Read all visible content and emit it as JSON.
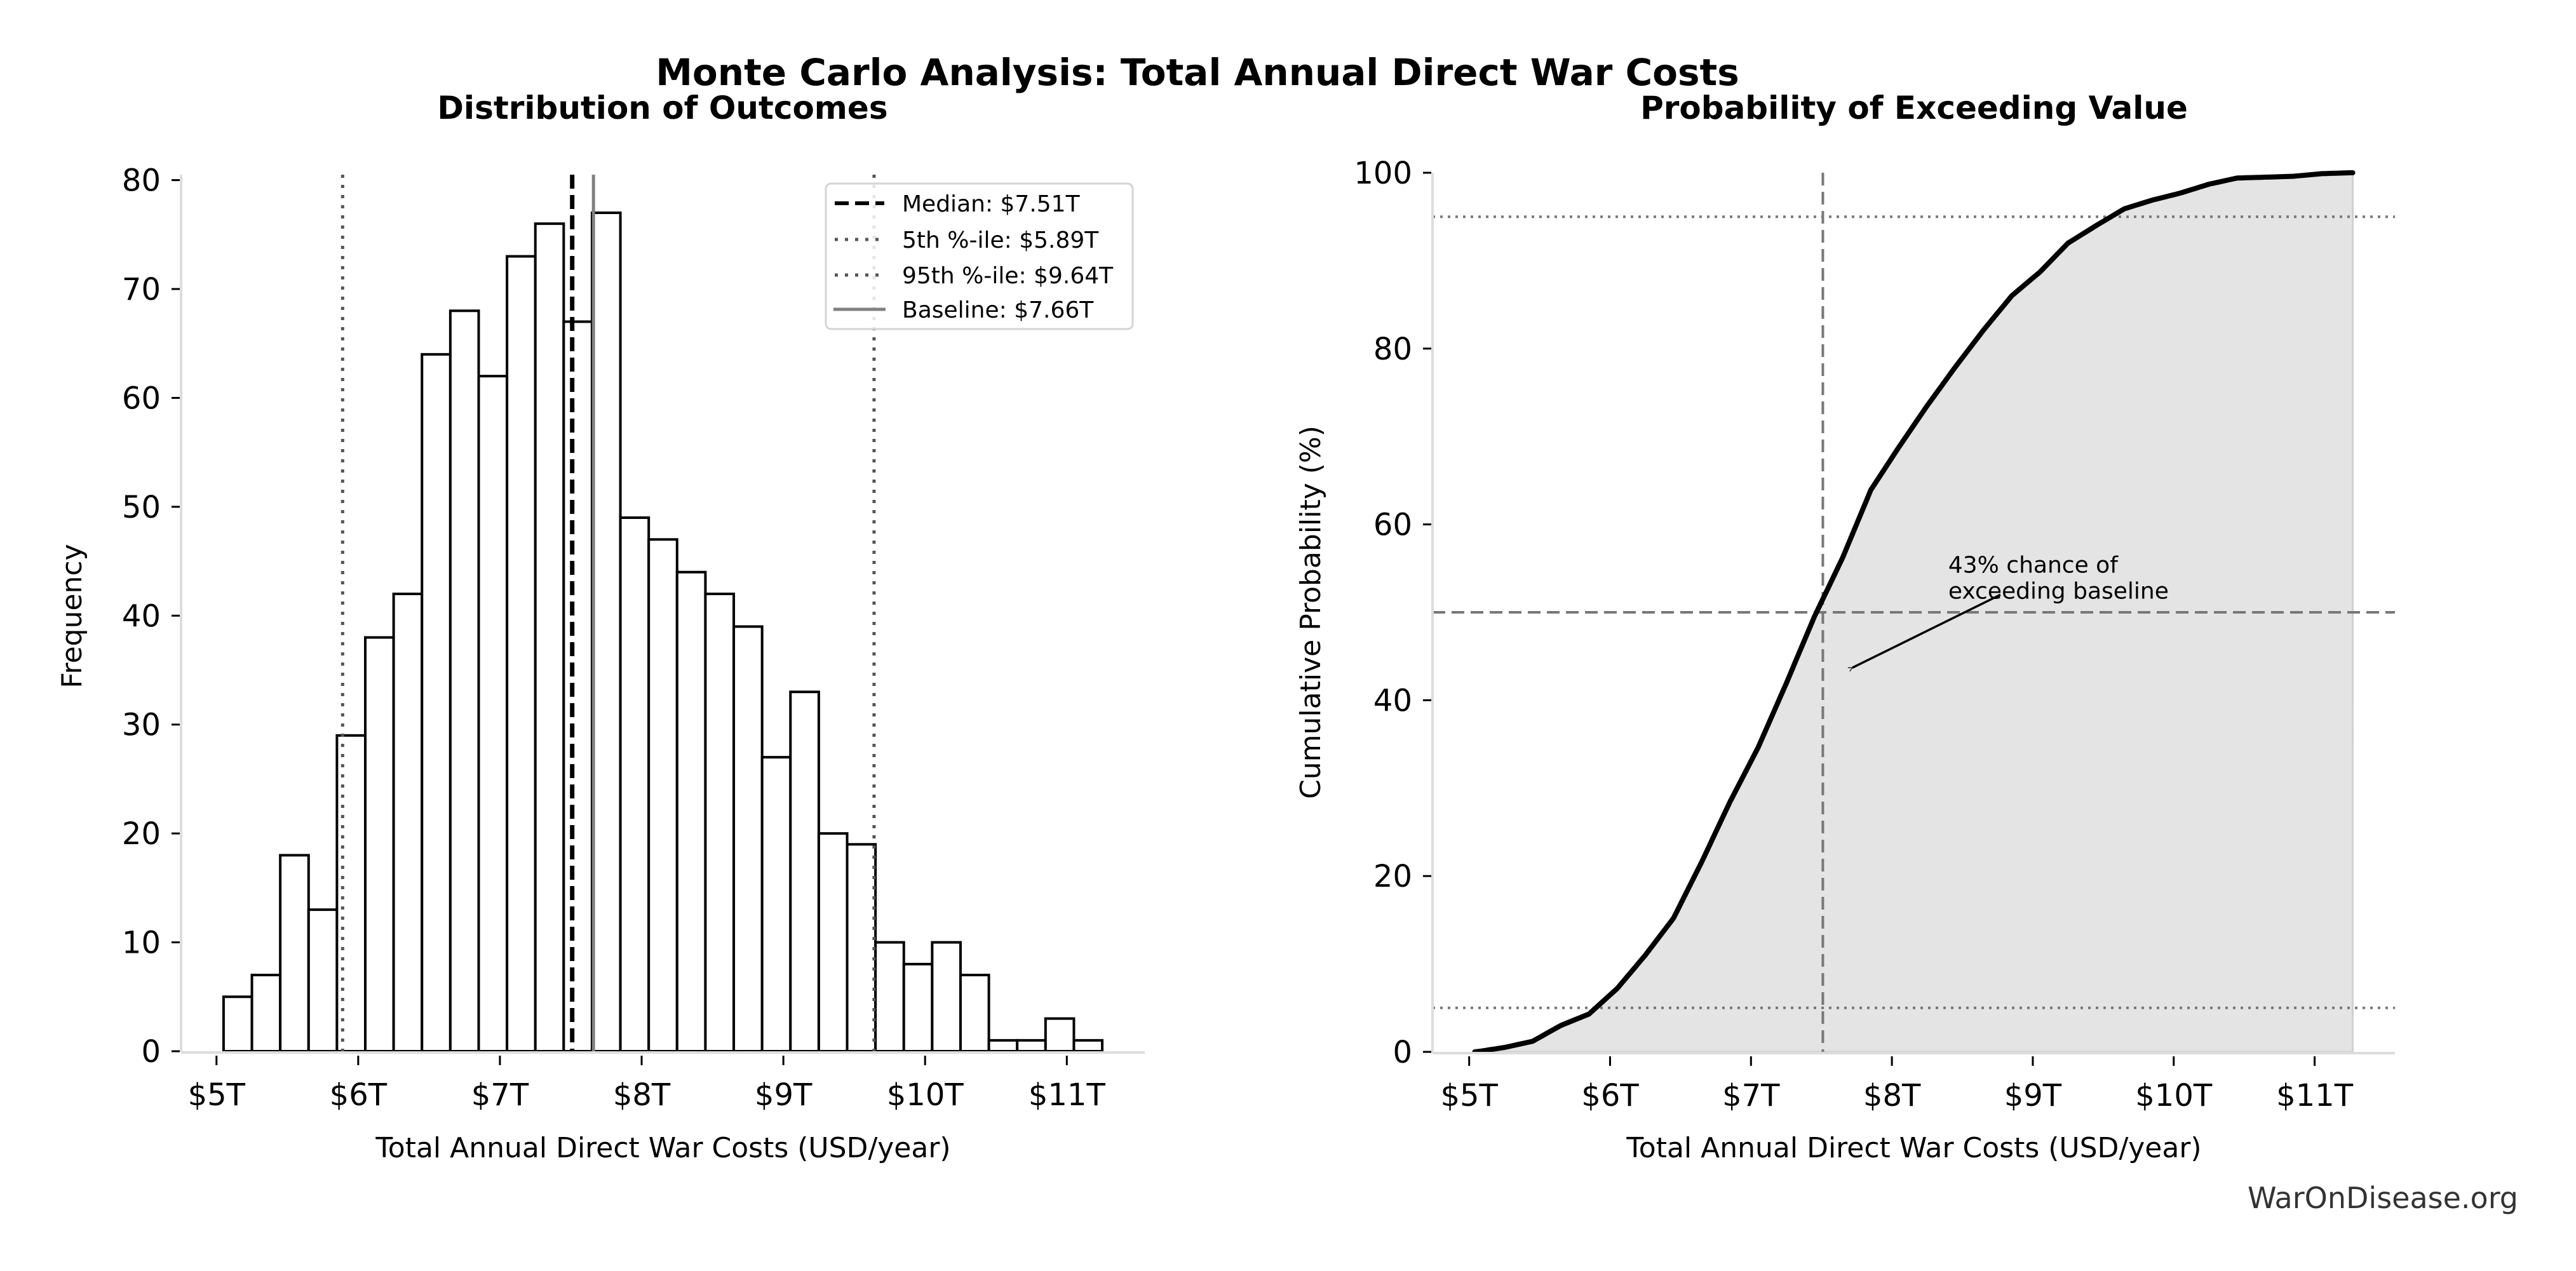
{
  "figure": {
    "title": "Monte Carlo Analysis: Total Annual Direct War Costs",
    "watermark": "WarOnDisease.org"
  },
  "colors": {
    "bar_edge": "#000000",
    "bar_fill": "#ffffff",
    "median_line": "#000000",
    "percentile_line": "#555555",
    "baseline_line": "#808080",
    "cdf_line": "#000000",
    "cdf_fill": "#e4e4e4",
    "ref_line": "#777777",
    "spine": "#dddddd"
  },
  "chart_data": [
    {
      "type": "bar",
      "subtype": "histogram",
      "title": "Distribution of Outcomes",
      "xlabel": "Total Annual Direct War Costs (USD/year)",
      "ylabel": "Frequency",
      "xlim": [
        4.75,
        11.55
      ],
      "ylim": [
        0,
        80.5
      ],
      "xticks": [
        5,
        6,
        7,
        8,
        9,
        10,
        11
      ],
      "xtick_labels": [
        "$5T",
        "$6T",
        "$7T",
        "$8T",
        "$9T",
        "$10T",
        "$11T"
      ],
      "yticks": [
        0,
        10,
        20,
        30,
        40,
        50,
        60,
        70,
        80
      ],
      "ytick_labels": [
        "0",
        "10",
        "20",
        "30",
        "40",
        "50",
        "60",
        "70",
        "80"
      ],
      "bin_start": 5.05,
      "bin_width": 0.2,
      "counts": [
        5,
        7,
        18,
        13,
        29,
        38,
        42,
        64,
        68,
        62,
        73,
        76,
        67,
        77,
        49,
        47,
        44,
        42,
        39,
        27,
        33,
        20,
        19,
        10,
        8,
        10,
        7,
        1,
        1,
        3,
        1
      ],
      "grid": false,
      "vlines": [
        {
          "name": "median",
          "x": 7.51,
          "style": "dashed"
        },
        {
          "name": "p5",
          "x": 5.89,
          "style": "dotted"
        },
        {
          "name": "p95",
          "x": 9.64,
          "style": "dotted"
        },
        {
          "name": "baseline",
          "x": 7.66,
          "style": "solid"
        }
      ],
      "legend": {
        "placement": "upper-right",
        "entries": [
          {
            "label": "Median: $7.51T",
            "style": "dashed"
          },
          {
            "label": "5th %-ile: $5.89T",
            "style": "dotted"
          },
          {
            "label": "95th %-ile: $9.64T",
            "style": "dotted"
          },
          {
            "label": "Baseline: $7.66T",
            "style": "solid"
          }
        ]
      }
    },
    {
      "type": "area",
      "subtype": "cumulative-distribution",
      "title": "Probability of Exceeding Value",
      "xlabel": "Total Annual Direct War Costs (USD/year)",
      "ylabel": "Cumulative Probability (%)",
      "xlim": [
        4.74,
        11.57
      ],
      "ylim": [
        0,
        100
      ],
      "xticks": [
        5,
        6,
        7,
        8,
        9,
        10,
        11
      ],
      "xtick_labels": [
        "$5T",
        "$6T",
        "$7T",
        "$8T",
        "$9T",
        "$10T",
        "$11T"
      ],
      "yticks": [
        0,
        20,
        40,
        60,
        80,
        100
      ],
      "ytick_labels": [
        "0",
        "20",
        "40",
        "60",
        "80",
        "100"
      ],
      "x_range": [
        5.04,
        11.27
      ],
      "derived_from": "histogram counts (cumulative)",
      "grid": false,
      "hlines": [
        {
          "name": "p5",
          "y": 5,
          "style": "dotted"
        },
        {
          "name": "p50",
          "y": 50,
          "style": "dashed"
        },
        {
          "name": "p95",
          "y": 95,
          "style": "dotted"
        }
      ],
      "vlines": [
        {
          "name": "median",
          "x": 7.51,
          "style": "dashed"
        }
      ],
      "annotation": {
        "lines": [
          "43% chance of",
          "exceeding baseline"
        ],
        "text_at": [
          8.4,
          54.5
        ],
        "arrow_from": [
          8.77,
          52
        ],
        "arrow_to": [
          7.72,
          43.7
        ]
      }
    }
  ]
}
